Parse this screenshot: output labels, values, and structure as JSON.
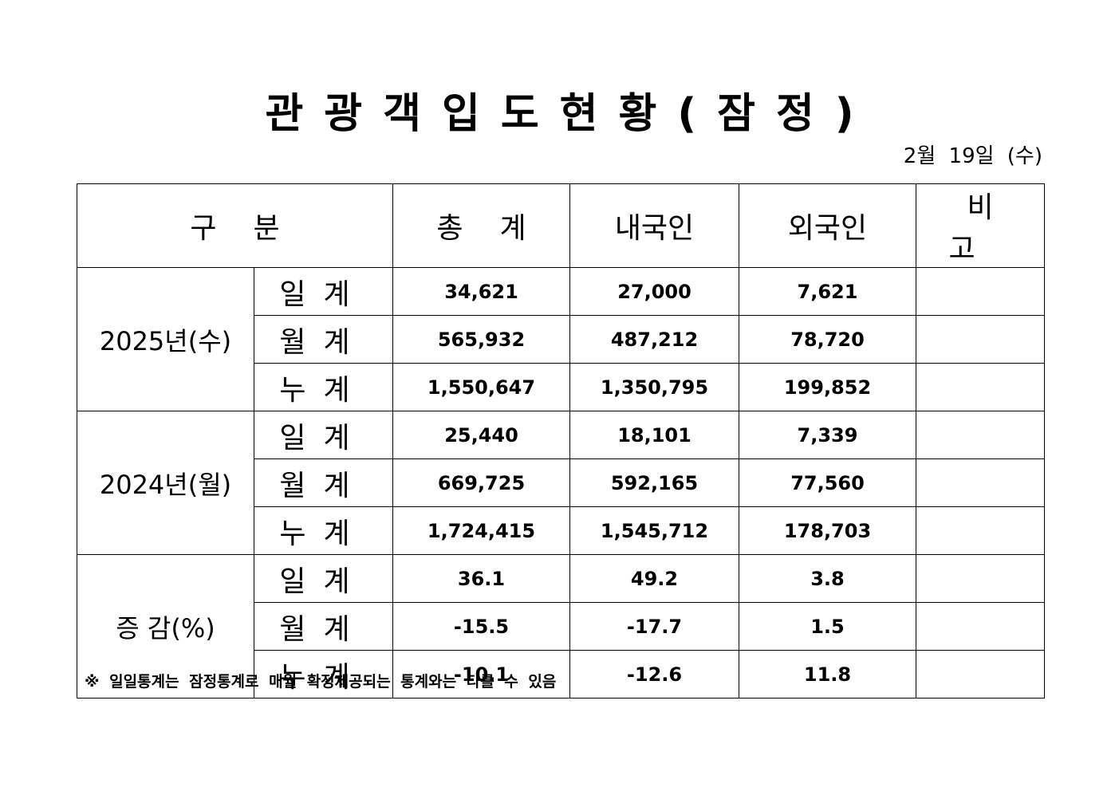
{
  "title": "관광객입도현황(잠정)",
  "date": "2월 19일 (수)",
  "table": {
    "headers": {
      "category": "구분",
      "total": "총계",
      "domestic": "내국인",
      "foreign": "외국인",
      "remarks": "비고"
    },
    "groups": [
      {
        "label": "2025년(수)",
        "rows": [
          {
            "sub": "일계",
            "total": "34,621",
            "domestic": "27,000",
            "foreign": "7,621",
            "remarks": ""
          },
          {
            "sub": "월계",
            "total": "565,932",
            "domestic": "487,212",
            "foreign": "78,720",
            "remarks": ""
          },
          {
            "sub": "누계",
            "total": "1,550,647",
            "domestic": "1,350,795",
            "foreign": "199,852",
            "remarks": ""
          }
        ]
      },
      {
        "label": "2024년(월)",
        "rows": [
          {
            "sub": "일계",
            "total": "25,440",
            "domestic": "18,101",
            "foreign": "7,339",
            "remarks": ""
          },
          {
            "sub": "월계",
            "total": "669,725",
            "domestic": "592,165",
            "foreign": "77,560",
            "remarks": ""
          },
          {
            "sub": "누계",
            "total": "1,724,415",
            "domestic": "1,545,712",
            "foreign": "178,703",
            "remarks": ""
          }
        ]
      },
      {
        "label": "증 감(%)",
        "rows": [
          {
            "sub": "일계",
            "total": "36.1",
            "domestic": "49.2",
            "foreign": "3.8",
            "remarks": ""
          },
          {
            "sub": "월계",
            "total": "-15.5",
            "domestic": "-17.7",
            "foreign": "1.5",
            "remarks": ""
          },
          {
            "sub": "누계",
            "total": "-10.1",
            "domestic": "-12.6",
            "foreign": "11.8",
            "remarks": ""
          }
        ]
      }
    ]
  },
  "footnote": "※ 일일통계는 잠정통계로 매월 확정제공되는 통계와는 다를 수 있음"
}
